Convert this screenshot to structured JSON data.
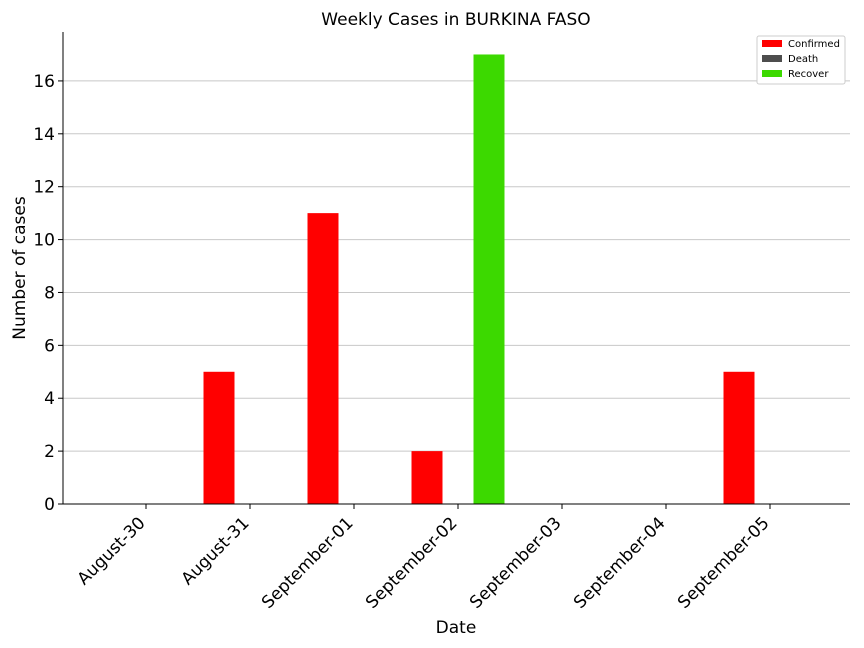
{
  "chart_data": {
    "type": "bar",
    "title": "Weekly Cases in BURKINA FASO",
    "xlabel": "Date",
    "ylabel": "Number of cases",
    "categories": [
      "August-30",
      "August-31",
      "September-01",
      "September-02",
      "September-03",
      "September-04",
      "September-05"
    ],
    "series": [
      {
        "name": "Confirmed",
        "color": "#ff0000",
        "values": [
          0,
          5,
          11,
          2,
          0,
          0,
          5
        ]
      },
      {
        "name": "Death",
        "color": "#4d4d4d",
        "values": [
          0,
          0,
          0,
          0,
          0,
          0,
          0
        ]
      },
      {
        "name": "Recover",
        "color": "#3cd900",
        "values": [
          0,
          0,
          0,
          17,
          0,
          0,
          0
        ]
      }
    ],
    "ylim": [
      0,
      17.85
    ],
    "yticks": [
      0,
      2,
      4,
      6,
      8,
      10,
      12,
      14,
      16
    ],
    "grid": "horizontal",
    "legend_position": "top-right"
  }
}
